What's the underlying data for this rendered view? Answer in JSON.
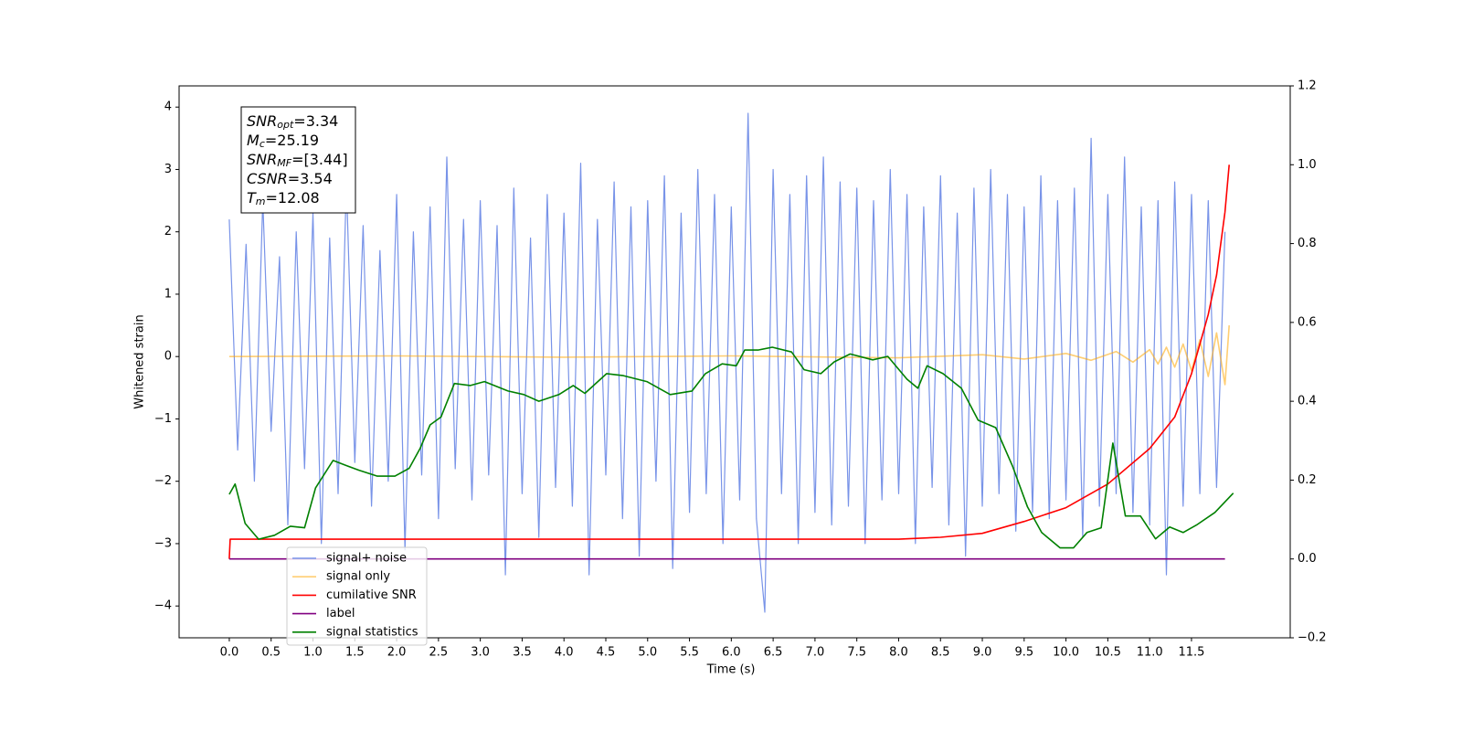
{
  "chart_data": {
    "type": "line",
    "xlabel": "Time (s)",
    "ylabel": "Whitened strain",
    "xlim": [
      -0.6,
      12.68
    ],
    "ylim": [
      -4.51,
      4.34
    ],
    "y2lim": [
      -0.2,
      1.2
    ],
    "xticks": [
      {
        "value": 0,
        "label": "0.0"
      },
      0.5,
      {
        "value": 1,
        "label": "1.0"
      },
      1.5,
      {
        "value": 2,
        "label": "2.0"
      },
      2.5,
      {
        "value": 3,
        "label": "3.0"
      },
      3.5,
      {
        "value": 4,
        "label": "4.0"
      },
      4.5,
      {
        "value": 5,
        "label": "5.0"
      },
      5.5,
      {
        "value": 6,
        "label": "6.0"
      },
      6.5,
      {
        "value": 7,
        "label": "7.0"
      },
      7.5,
      {
        "value": 8,
        "label": "8.0"
      },
      8.5,
      {
        "value": 9,
        "label": "9.0"
      },
      9.5,
      {
        "value": 10,
        "label": "10.0"
      },
      10.5,
      {
        "value": 11,
        "label": "11.0"
      },
      11.5
    ],
    "yticks": [
      {
        "value": -4,
        "label": "−4"
      },
      {
        "value": -3,
        "label": "−3"
      },
      {
        "value": -2,
        "label": "−2"
      },
      {
        "value": -1,
        "label": "−1"
      },
      0,
      1,
      2,
      3,
      4
    ],
    "y2ticks": [
      {
        "value": -0.2,
        "label": "−0.2"
      },
      {
        "value": 0,
        "label": "0.0"
      },
      0.2,
      0.4,
      0.6,
      0.8,
      {
        "value": 1,
        "label": "1.0"
      },
      1.2
    ],
    "grid": false,
    "legend": "lower left",
    "annotation": [
      {
        "symbol": "SNR",
        "subscript": "opt",
        "text": "=3.34"
      },
      {
        "symbol": "M",
        "subscript": "c",
        "text": "=25.19"
      },
      {
        "symbol": "SNR",
        "subscript": "MF",
        "text": "=[3.44]"
      },
      {
        "symbol": "CSNR",
        "text": "=3.54"
      },
      {
        "symbol": "T",
        "subscript": "m",
        "text": "=12.08"
      }
    ],
    "series": [
      {
        "name": "signal+ noise",
        "color": "#7893e8",
        "x": [
          0,
          0.1,
          0.2,
          0.3,
          0.4,
          0.5,
          0.6,
          0.7,
          0.8,
          0.9,
          1,
          1.1,
          1.2,
          1.3,
          1.4,
          1.5,
          1.6,
          1.7,
          1.8,
          1.9,
          2,
          2.1,
          2.2,
          2.3,
          2.4,
          2.5,
          2.6,
          2.7,
          2.8,
          2.9,
          3,
          3.1,
          3.2,
          3.3,
          3.4,
          3.5,
          3.6,
          3.7,
          3.8,
          3.9,
          4,
          4.1,
          4.2,
          4.3,
          4.4,
          4.5,
          4.6,
          4.7,
          4.8,
          4.9,
          5,
          5.1,
          5.2,
          5.3,
          5.4,
          5.5,
          5.6,
          5.7,
          5.8,
          5.9,
          6,
          6.1,
          6.2,
          6.3,
          6.4,
          6.5,
          6.6,
          6.7,
          6.8,
          6.9,
          7,
          7.1,
          7.2,
          7.3,
          7.4,
          7.5,
          7.6,
          7.7,
          7.8,
          7.9,
          8,
          8.1,
          8.2,
          8.3,
          8.4,
          8.5,
          8.6,
          8.7,
          8.8,
          8.9,
          9,
          9.1,
          9.2,
          9.3,
          9.4,
          9.5,
          9.6,
          9.7,
          9.8,
          9.9,
          10,
          10.1,
          10.2,
          10.3,
          10.4,
          10.5,
          10.6,
          10.7,
          10.8,
          10.9,
          11,
          11.1,
          11.2,
          11.3,
          11.4,
          11.5,
          11.6,
          11.7,
          11.8,
          11.9
        ],
        "values": [
          2.2,
          -1.5,
          1.8,
          -2.0,
          2.5,
          -1.2,
          1.6,
          -2.7,
          2.0,
          -1.8,
          2.3,
          -3.0,
          1.9,
          -2.2,
          2.8,
          -1.7,
          2.1,
          -2.4,
          1.7,
          -2.0,
          2.6,
          -3.1,
          2.0,
          -1.9,
          2.4,
          -2.6,
          3.2,
          -1.8,
          2.2,
          -2.3,
          2.5,
          -1.9,
          2.1,
          -3.5,
          2.7,
          -2.2,
          1.9,
          -2.9,
          2.6,
          -2.1,
          2.3,
          -2.4,
          3.1,
          -3.5,
          2.2,
          -1.9,
          2.8,
          -2.6,
          2.4,
          -3.2,
          2.5,
          -2.0,
          2.9,
          -3.4,
          2.3,
          -2.5,
          3.0,
          -2.2,
          2.6,
          -3.0,
          2.4,
          -2.3,
          3.9,
          -2.6,
          -4.1,
          3.0,
          -2.2,
          2.6,
          -3.0,
          2.9,
          -2.5,
          3.2,
          -2.7,
          2.8,
          -2.4,
          2.7,
          -3.0,
          2.5,
          -2.3,
          3.0,
          -2.2,
          2.6,
          -3.0,
          2.4,
          -2.1,
          2.9,
          -2.7,
          2.3,
          -3.2,
          2.7,
          -2.4,
          3.0,
          -2.2,
          2.6,
          -2.8,
          2.4,
          -2.5,
          2.9,
          -2.6,
          2.5,
          -2.3,
          2.7,
          -2.9,
          3.5,
          -2.4,
          2.6,
          -2.2,
          3.2,
          -2.5,
          2.4,
          -2.7,
          2.5,
          -3.5,
          2.8,
          -2.4,
          2.6,
          -2.2,
          2.5,
          -2.1,
          2.0
        ]
      },
      {
        "name": "signal only",
        "color": "#ffa500",
        "x": [
          0,
          2,
          4,
          6,
          8,
          9,
          9.5,
          10,
          10.3,
          10.6,
          10.8,
          11,
          11.1,
          11.2,
          11.3,
          11.4,
          11.5,
          11.6,
          11.7,
          11.8,
          11.9,
          11.95
        ],
        "values": [
          0,
          0.01,
          -0.01,
          0.01,
          -0.02,
          0.03,
          -0.04,
          0.05,
          -0.06,
          0.08,
          -0.09,
          0.11,
          -0.12,
          0.15,
          -0.17,
          0.2,
          -0.23,
          0.27,
          -0.32,
          0.38,
          -0.45,
          0.5
        ]
      },
      {
        "name": "cumilative SNR",
        "color": "#ff0000",
        "axis": "y2",
        "x": [
          0,
          0.01,
          0.05,
          7.5,
          8,
          8.5,
          9,
          9.5,
          10,
          10.5,
          11,
          11.3,
          11.5,
          11.7,
          11.8,
          11.9,
          11.95
        ],
        "values": [
          0,
          0.05,
          0.05,
          0.05,
          0.05,
          0.055,
          0.065,
          0.095,
          0.13,
          0.19,
          0.28,
          0.36,
          0.47,
          0.62,
          0.72,
          0.88,
          1.0
        ]
      },
      {
        "name": "label",
        "color": "#800080",
        "axis": "y2",
        "x": [
          0,
          11.9
        ],
        "values": [
          0,
          0
        ]
      },
      {
        "name": "signal statistics",
        "color": "#008000",
        "axis": "y2",
        "x": [
          0,
          0.07,
          0.19,
          0.35,
          0.54,
          0.73,
          0.9,
          1.03,
          1.24,
          1.41,
          1.55,
          1.77,
          1.98,
          2.15,
          2.28,
          2.4,
          2.53,
          2.69,
          2.88,
          3.05,
          3.33,
          3.52,
          3.7,
          3.94,
          4.11,
          4.25,
          4.51,
          4.71,
          4.99,
          5.27,
          5.53,
          5.69,
          5.89,
          6.06,
          6.16,
          6.32,
          6.49,
          6.72,
          6.87,
          7.07,
          7.23,
          7.42,
          7.69,
          7.87,
          8.1,
          8.23,
          8.34,
          8.53,
          8.75,
          8.95,
          9.16,
          9.36,
          9.54,
          9.71,
          9.93,
          10.09,
          10.25,
          10.42,
          10.56,
          10.71,
          10.89,
          11.07,
          11.24,
          11.4,
          11.56,
          11.78,
          12.0
        ],
        "values": [
          0.164,
          0.19,
          0.09,
          0.05,
          0.06,
          0.083,
          0.079,
          0.18,
          0.25,
          0.236,
          0.225,
          0.21,
          0.21,
          0.23,
          0.28,
          0.34,
          0.36,
          0.445,
          0.44,
          0.45,
          0.426,
          0.417,
          0.4,
          0.417,
          0.44,
          0.42,
          0.47,
          0.465,
          0.45,
          0.417,
          0.426,
          0.47,
          0.495,
          0.49,
          0.53,
          0.53,
          0.537,
          0.525,
          0.48,
          0.47,
          0.5,
          0.52,
          0.505,
          0.514,
          0.456,
          0.433,
          0.49,
          0.47,
          0.433,
          0.352,
          0.333,
          0.236,
          0.132,
          0.067,
          0.028,
          0.028,
          0.067,
          0.079,
          0.294,
          0.109,
          0.109,
          0.051,
          0.081,
          0.067,
          0.086,
          0.118,
          0.167
        ]
      }
    ]
  }
}
